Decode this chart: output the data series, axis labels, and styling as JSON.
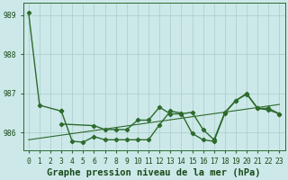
{
  "title": "Graphe pression niveau de la mer (hPa)",
  "bg_color": "#cce8e8",
  "line_color": "#2d6a2d",
  "grid_color": "#aacccc",
  "tick_label_color": "#1a4a1a",
  "title_fontsize": 7.5,
  "tick_fontsize": 5.8,
  "ylim": [
    985.55,
    989.3
  ],
  "yticks": [
    986,
    987,
    988
  ],
  "ytick_extra_top": 989,
  "xlim": [
    -0.5,
    23.5
  ],
  "line1_x": [
    0,
    1,
    3
  ],
  "line1_y": [
    989.05,
    986.7,
    986.55
  ],
  "line2_x": [
    3,
    4,
    5,
    6,
    7,
    8,
    9,
    10,
    11,
    12,
    13,
    14,
    15,
    16,
    17,
    18,
    19,
    20,
    21,
    22,
    23
  ],
  "line2_y": [
    986.55,
    985.78,
    985.76,
    985.9,
    985.82,
    985.82,
    985.82,
    985.82,
    985.82,
    986.2,
    986.55,
    986.5,
    985.98,
    985.82,
    985.78,
    986.5,
    986.82,
    986.98,
    986.62,
    986.62,
    986.48
  ],
  "line3_x": [
    3,
    6,
    7,
    8,
    9,
    10,
    11,
    12,
    13,
    14,
    15,
    16,
    17,
    18,
    19,
    20,
    21,
    22,
    23
  ],
  "line3_y": [
    986.22,
    986.18,
    986.08,
    986.08,
    986.08,
    986.32,
    986.32,
    986.65,
    986.48,
    986.48,
    986.52,
    986.08,
    985.82,
    986.52,
    986.82,
    987.0,
    986.62,
    986.58,
    986.48
  ],
  "trend_x": [
    0,
    23
  ],
  "trend_y": [
    985.82,
    986.72
  ]
}
